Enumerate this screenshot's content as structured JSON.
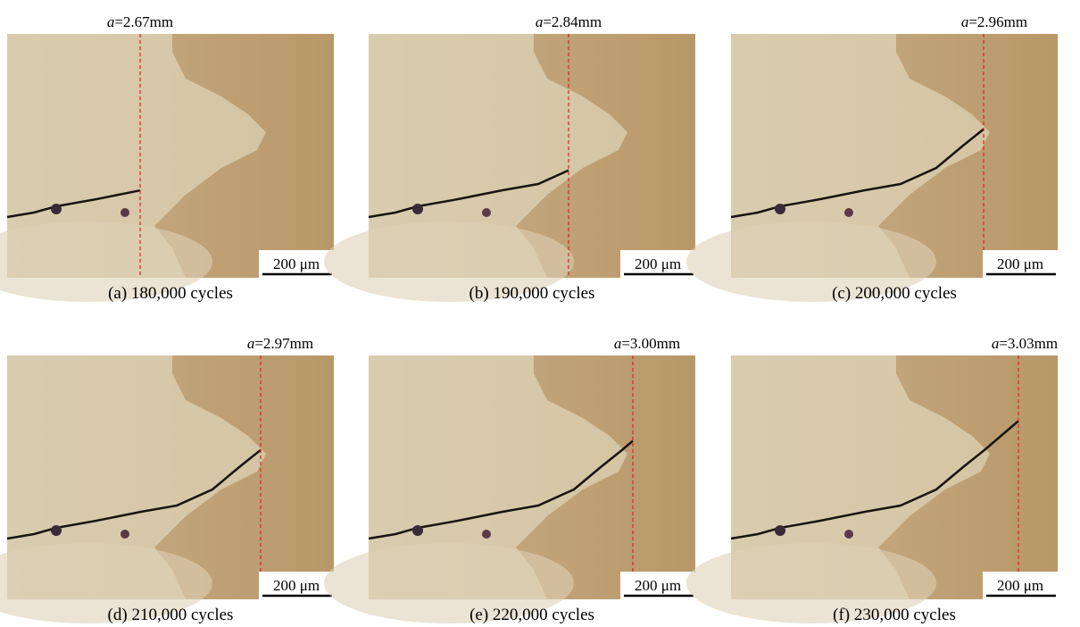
{
  "panels": [
    {
      "crack_label": {
        "var": "a",
        "rest": "=2.67mm"
      },
      "scale_bar": "200 μm",
      "caption": "(a) 180,000 cycles"
    },
    {
      "crack_label": {
        "var": "a",
        "rest": "=2.84mm"
      },
      "scale_bar": "200 μm",
      "caption": "(b) 190,000 cycles"
    },
    {
      "crack_label": {
        "var": "a",
        "rest": "=2.96mm"
      },
      "scale_bar": "200 μm",
      "caption": "(c) 200,000 cycles"
    },
    {
      "crack_label": {
        "var": "a",
        "rest": "=2.97mm"
      },
      "scale_bar": "200 μm",
      "caption": "(d) 210,000 cycles"
    },
    {
      "crack_label": {
        "var": "a",
        "rest": "=3.00mm"
      },
      "scale_bar": "200 μm",
      "caption": "(e) 220,000 cycles"
    },
    {
      "crack_label": {
        "var": "a",
        "rest": "=3.03mm"
      },
      "scale_bar": "200 μm",
      "caption": "(f) 230,000 cycles"
    }
  ]
}
